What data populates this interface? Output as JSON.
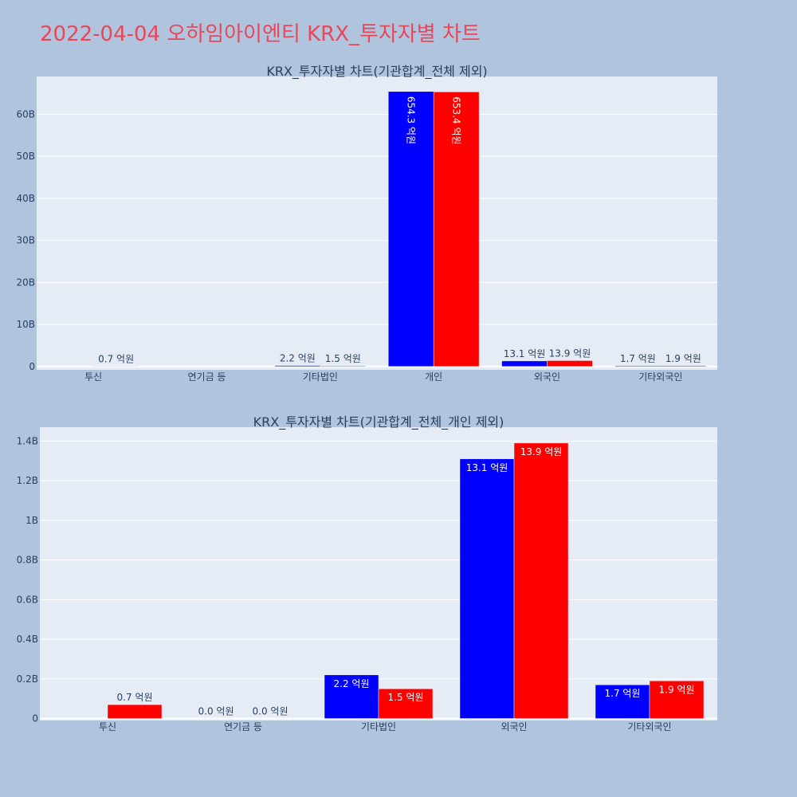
{
  "page": {
    "title": "2022-04-04 오하임아이엔티 KRX_투자자별 차트"
  },
  "colors": {
    "background": "#b0c4de",
    "plot_bg": "#e5ecf6",
    "title": "#e8475a",
    "series_a": "#0000ff",
    "series_b": "#ff0000"
  },
  "chart_data": [
    {
      "type": "bar",
      "title": "KRX_투자자별 차트(기관합계_전체 제외)",
      "categories": [
        "투신",
        "연기금 등",
        "기타법인",
        "개인",
        "외국인",
        "기타외국인"
      ],
      "series": [
        {
          "color": "#0000ff",
          "values": [
            0,
            0,
            220000000,
            65430000000,
            1310000000,
            170000000
          ],
          "labels": [
            "",
            "",
            "2.2 억원",
            "654.3 억원",
            "13.1 억원",
            "1.7 억원"
          ]
        },
        {
          "color": "#ff0000",
          "values": [
            70000000,
            0,
            150000000,
            65340000000,
            1390000000,
            190000000
          ],
          "labels": [
            "0.7 억원",
            "",
            "1.5 억원",
            "653.4 억원",
            "13.9 억원",
            "1.9 억원"
          ]
        }
      ],
      "yticks": [
        0,
        10000000000,
        20000000000,
        30000000000,
        40000000000,
        50000000000,
        60000000000
      ],
      "ytick_labels": [
        "0",
        "10B",
        "20B",
        "30B",
        "40B",
        "50B",
        "60B"
      ],
      "ylim": [
        -800000000,
        69000000000
      ],
      "grid": true,
      "legend": "none"
    },
    {
      "type": "bar",
      "title": "KRX_투자자별 차트(기관합계_전체_개인 제외)",
      "categories": [
        "투신",
        "연기금 등",
        "기타법인",
        "외국인",
        "기타외국인"
      ],
      "series": [
        {
          "color": "#0000ff",
          "values": [
            0,
            0,
            220000000,
            1310000000,
            170000000
          ],
          "labels": [
            "",
            "0.0 억원",
            "2.2 억원",
            "13.1 억원",
            "1.7 억원"
          ]
        },
        {
          "color": "#ff0000",
          "values": [
            70000000,
            0,
            150000000,
            1390000000,
            190000000
          ],
          "labels": [
            "0.7 억원",
            "0.0 억원",
            "1.5 억원",
            "13.9 억원",
            "1.9 억원"
          ]
        }
      ],
      "yticks": [
        0,
        200000000,
        400000000,
        600000000,
        800000000,
        1000000000,
        1200000000,
        1400000000
      ],
      "ytick_labels": [
        "0",
        "0.2B",
        "0.4B",
        "0.6B",
        "0.8B",
        "1B",
        "1.2B",
        "1.4B"
      ],
      "ylim": [
        -10000000,
        1470000000
      ],
      "grid": true,
      "legend": "none"
    }
  ]
}
